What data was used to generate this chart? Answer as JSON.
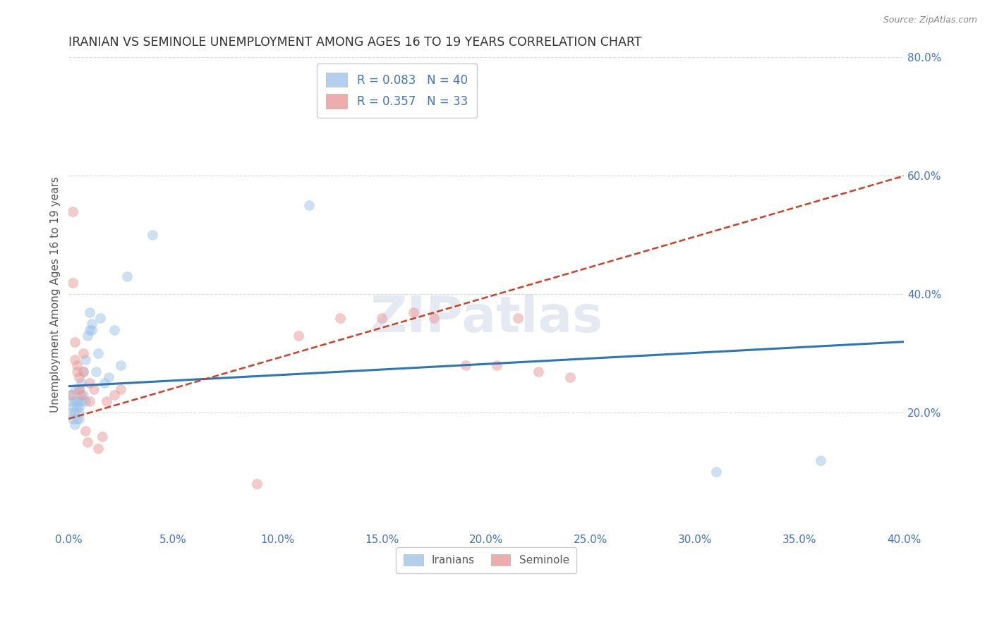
{
  "title": "IRANIAN VS SEMINOLE UNEMPLOYMENT AMONG AGES 16 TO 19 YEARS CORRELATION CHART",
  "source": "Source: ZipAtlas.com",
  "ylabel": "Unemployment Among Ages 16 to 19 years",
  "xlim": [
    0.0,
    0.4
  ],
  "ylim": [
    0.0,
    0.8
  ],
  "xticks": [
    0.0,
    0.05,
    0.1,
    0.15,
    0.2,
    0.25,
    0.3,
    0.35,
    0.4
  ],
  "yticks_right": [
    0.2,
    0.4,
    0.6,
    0.8
  ],
  "iranian_color": "#9fc5e8",
  "seminole_color": "#ea9999",
  "iranian_line_color": "#2e75b6",
  "seminole_line_color": "#cc4125",
  "legend_R_iranian": "R = 0.083",
  "legend_N_iranian": "N = 40",
  "legend_R_seminole": "R = 0.357",
  "legend_N_seminole": "N = 33",
  "tick_color": "#4472c4",
  "label_color": "#595959",
  "grid_color": "#d9d9d9",
  "background_color": "#ffffff",
  "marker_size": 100,
  "marker_alpha": 0.5,
  "iranian_x": [
    0.001,
    0.001,
    0.002,
    0.002,
    0.002,
    0.003,
    0.003,
    0.003,
    0.003,
    0.004,
    0.004,
    0.004,
    0.005,
    0.005,
    0.005,
    0.005,
    0.005,
    0.006,
    0.006,
    0.007,
    0.007,
    0.008,
    0.008,
    0.009,
    0.01,
    0.01,
    0.011,
    0.011,
    0.013,
    0.014,
    0.015,
    0.017,
    0.019,
    0.022,
    0.025,
    0.028,
    0.04,
    0.115,
    0.31,
    0.36
  ],
  "iranian_y": [
    0.2,
    0.22,
    0.19,
    0.21,
    0.23,
    0.18,
    0.2,
    0.22,
    0.24,
    0.19,
    0.21,
    0.22,
    0.2,
    0.22,
    0.24,
    0.19,
    0.21,
    0.25,
    0.22,
    0.27,
    0.23,
    0.22,
    0.29,
    0.33,
    0.34,
    0.37,
    0.34,
    0.35,
    0.27,
    0.3,
    0.36,
    0.25,
    0.26,
    0.34,
    0.28,
    0.43,
    0.5,
    0.55,
    0.1,
    0.12
  ],
  "seminole_x": [
    0.001,
    0.002,
    0.002,
    0.003,
    0.003,
    0.004,
    0.004,
    0.005,
    0.005,
    0.006,
    0.007,
    0.007,
    0.008,
    0.009,
    0.01,
    0.01,
    0.012,
    0.014,
    0.016,
    0.018,
    0.022,
    0.025,
    0.09,
    0.11,
    0.13,
    0.15,
    0.165,
    0.175,
    0.19,
    0.205,
    0.215,
    0.225,
    0.24
  ],
  "seminole_y": [
    0.23,
    0.54,
    0.42,
    0.32,
    0.29,
    0.28,
    0.27,
    0.26,
    0.24,
    0.23,
    0.3,
    0.27,
    0.17,
    0.15,
    0.25,
    0.22,
    0.24,
    0.14,
    0.16,
    0.22,
    0.23,
    0.24,
    0.08,
    0.33,
    0.36,
    0.36,
    0.37,
    0.36,
    0.28,
    0.28,
    0.36,
    0.27,
    0.26
  ],
  "iranian_trend_x": [
    0.0,
    0.4
  ],
  "iranian_trend_y": [
    0.245,
    0.32
  ],
  "seminole_trend_x": [
    0.0,
    0.4
  ],
  "seminole_trend_y": [
    0.19,
    0.6
  ]
}
